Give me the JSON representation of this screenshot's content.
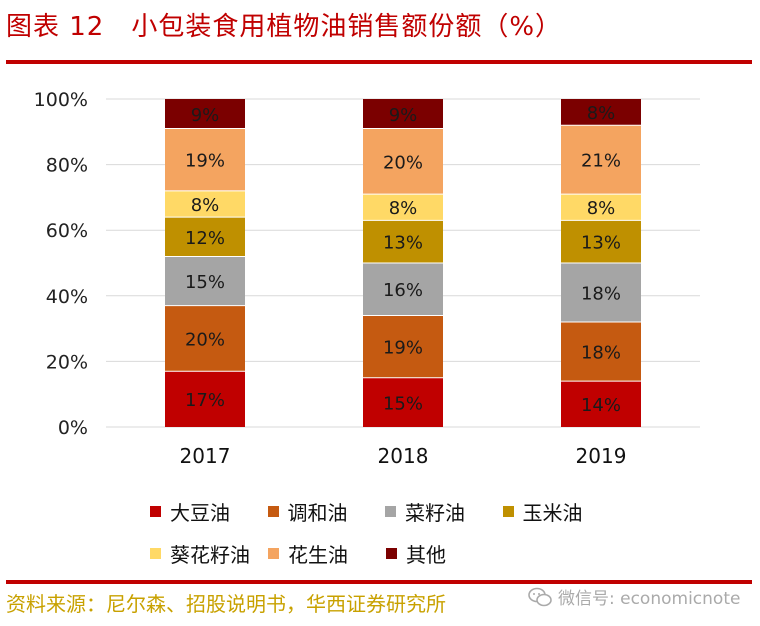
{
  "header": {
    "title": "图表 12　小包装食用植物油销售额份额（%）"
  },
  "footer": {
    "source": "资料来源：尼尔森、招股说明书，华西证券研究所"
  },
  "watermark": {
    "text": "微信号: economicnote",
    "icon": "wechat-icon",
    "color": "#aaaaaa"
  },
  "chart_data": {
    "type": "bar",
    "stacked": true,
    "categories": [
      "2017",
      "2018",
      "2019"
    ],
    "series": [
      {
        "name": "大豆油",
        "color": "#c00000",
        "values": [
          17,
          15,
          14
        ],
        "labels": [
          "17%",
          "15%",
          "14%"
        ]
      },
      {
        "name": "调和油",
        "color": "#c55a11",
        "values": [
          20,
          19,
          18
        ],
        "labels": [
          "20%",
          "19%",
          "18%"
        ]
      },
      {
        "name": "菜籽油",
        "color": "#a5a5a5",
        "values": [
          15,
          16,
          18
        ],
        "labels": [
          "15%",
          "16%",
          "18%"
        ]
      },
      {
        "name": "玉米油",
        "color": "#bf9000",
        "values": [
          12,
          13,
          13
        ],
        "labels": [
          "12%",
          "13%",
          "13%"
        ]
      },
      {
        "name": "葵花籽油",
        "color": "#ffd966",
        "values": [
          8,
          8,
          8
        ],
        "labels": [
          "8%",
          "8%",
          "8%"
        ]
      },
      {
        "name": "花生油",
        "color": "#f4a460",
        "values": [
          19,
          20,
          21
        ],
        "labels": [
          "19%",
          "20%",
          "21%"
        ]
      },
      {
        "name": "其他",
        "color": "#7b0000",
        "values": [
          9,
          9,
          8
        ],
        "labels": [
          "9%",
          "9%",
          "8%"
        ]
      }
    ],
    "yticks": [
      "0%",
      "20%",
      "40%",
      "60%",
      "80%",
      "100%"
    ],
    "ylim": [
      0,
      100
    ],
    "grid": true,
    "legend": "bottom"
  }
}
